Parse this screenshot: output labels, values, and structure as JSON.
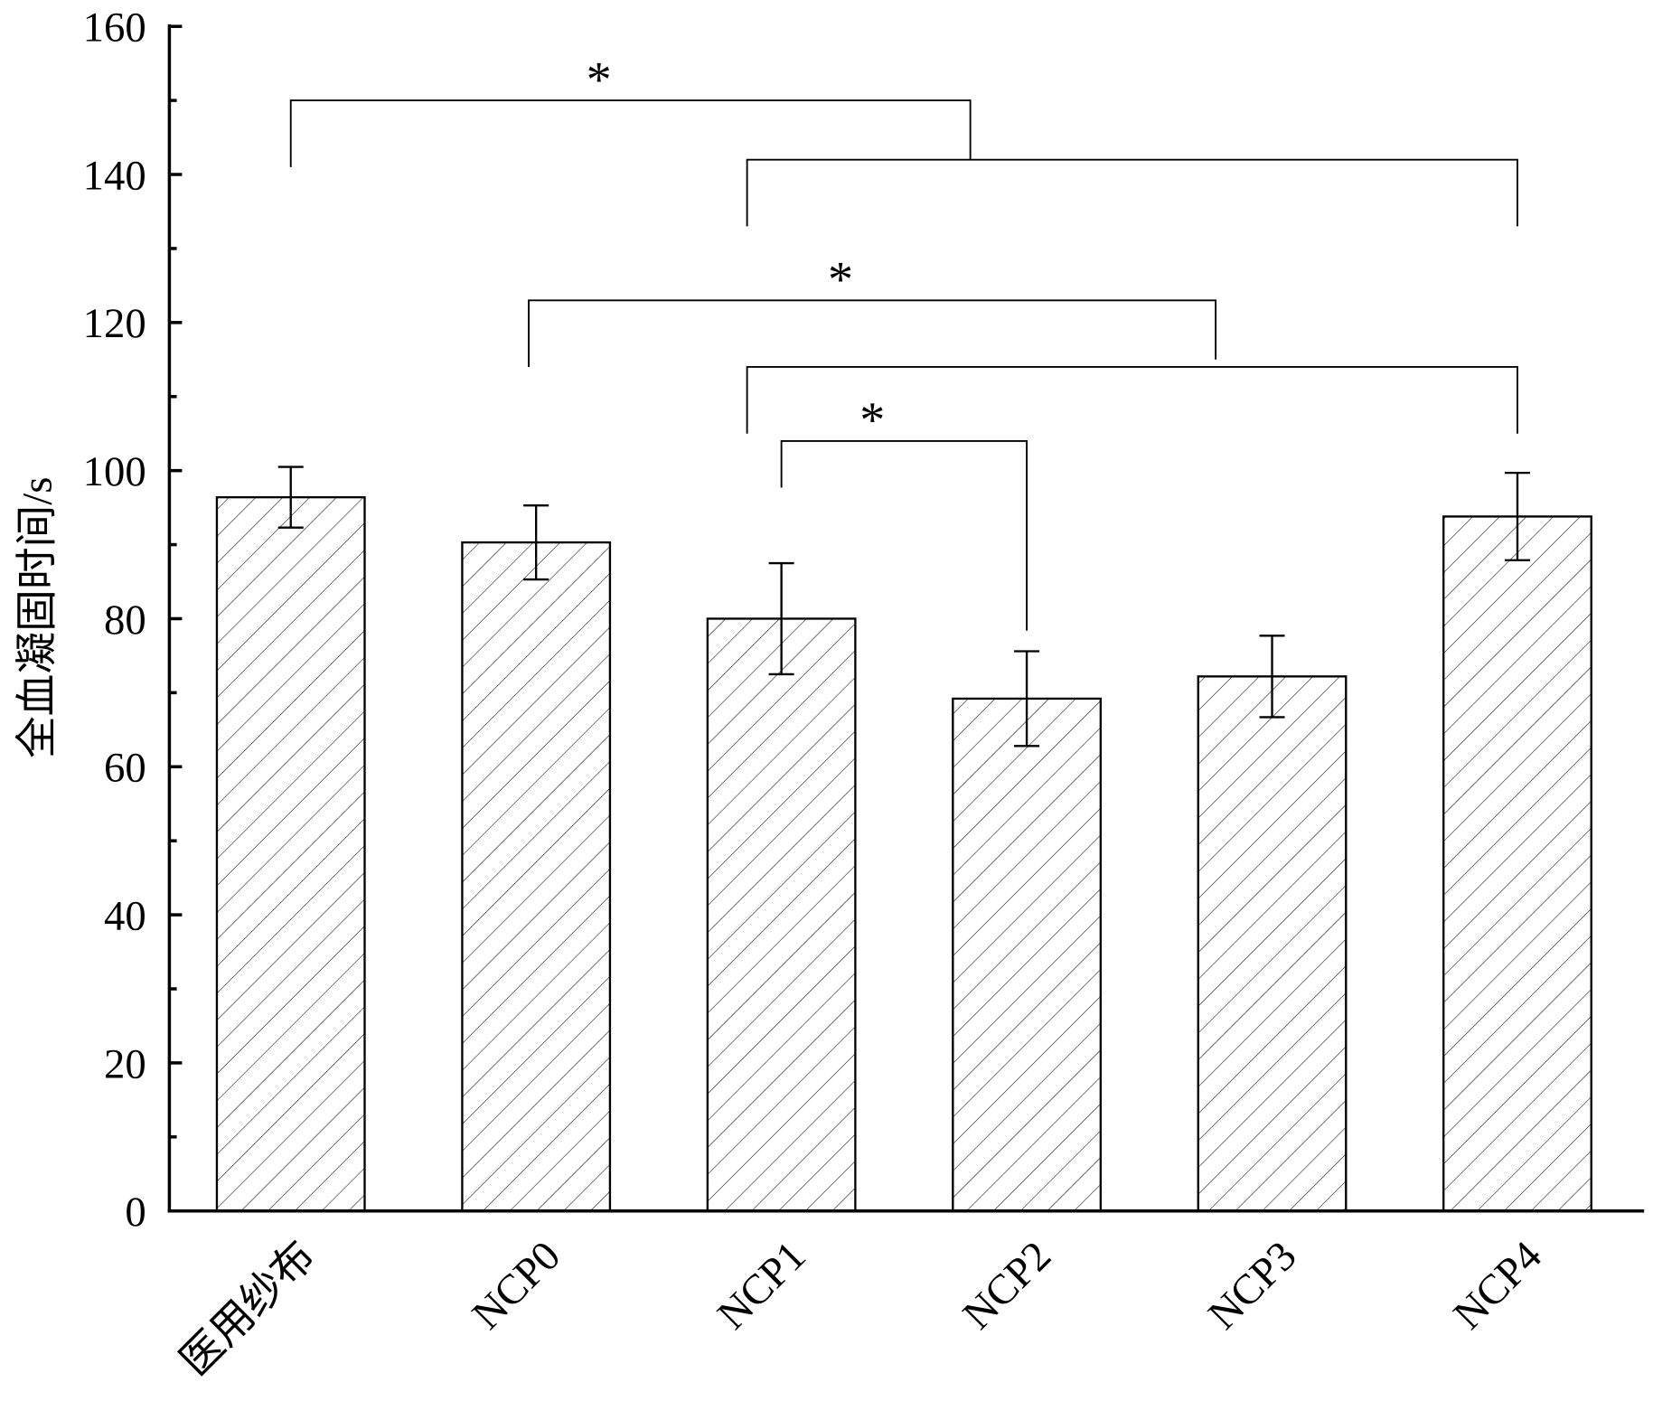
{
  "chart_data": {
    "type": "bar",
    "title": "",
    "xlabel": "",
    "ylabel": "全血凝固时间/s",
    "ylim": [
      0,
      160
    ],
    "yticks": [
      "0",
      "20",
      "40",
      "60",
      "80",
      "100",
      "120",
      "140",
      "160"
    ],
    "minor_tick_step": 10,
    "grid": false,
    "categories": [
      "医用纱布",
      "NCP0",
      "NCP1",
      "NCP2",
      "NCP3",
      "NCP4"
    ],
    "values": [
      96.4,
      90.3,
      80.0,
      69.2,
      72.2,
      93.8
    ],
    "errors": [
      4.1,
      5.0,
      7.5,
      6.4,
      5.5,
      5.9
    ],
    "bar_pattern": "diagonal-hatch",
    "colors": {
      "bar_fill": "#ffffff",
      "stroke": "#000000"
    },
    "significance": [
      {
        "from": 0,
        "to": 2.77,
        "y": 150,
        "left_end": 141,
        "right_end": 142,
        "label": "*"
      },
      {
        "from": 1.86,
        "to": 5.0,
        "y": 142,
        "left_end": 133,
        "right_end": 133,
        "label": ""
      },
      {
        "from": 0.97,
        "to": 3.77,
        "y": 123,
        "left_end": 114,
        "right_end": 115,
        "label": "*"
      },
      {
        "from": 1.86,
        "to": 5.0,
        "y": 114,
        "left_end": 105,
        "right_end": 105,
        "label": ""
      },
      {
        "from": 2.0,
        "to": 3.0,
        "y": 104,
        "left_end": 97.7,
        "right_end": 78.4,
        "label": "*"
      }
    ]
  }
}
